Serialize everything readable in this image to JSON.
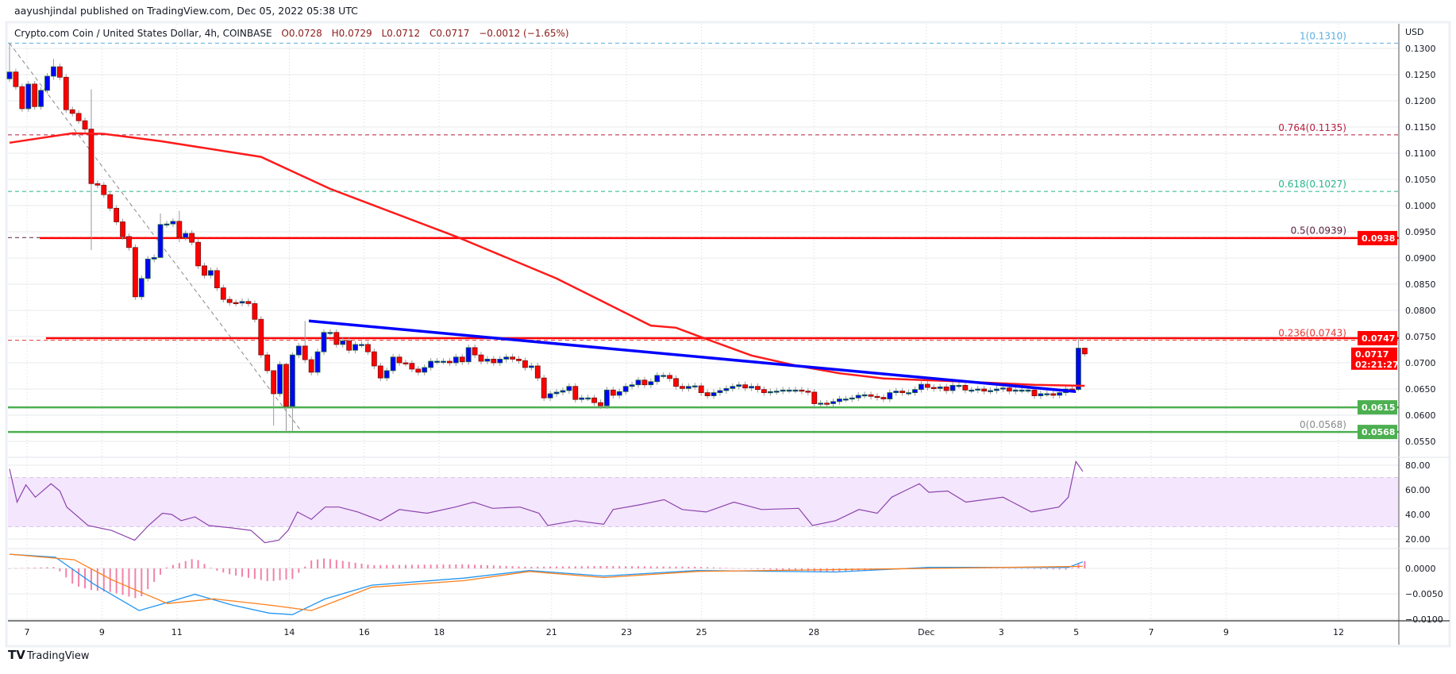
{
  "header": {
    "published": "aayushjindal published on TradingView.com, Dec 05, 2022 05:38 UTC",
    "symbol": "Crypto.com Coin / United States Dollar, 4h, COINBASE",
    "open": "O0.0728",
    "high": "H0.0729",
    "low": "L0.0712",
    "close": "C0.0717",
    "change": "−0.0012 (−1.65%)"
  },
  "footer": {
    "logo_text": "TradingView"
  },
  "colors": {
    "up": "#0000ff",
    "up_border": "#1e6b2e",
    "down": "#ff0000",
    "down_border": "#7a0e0e",
    "ma": "#ff1a1a",
    "trend": "#0000ff",
    "resistance": "#ff0000",
    "support": "#4caf50",
    "rsi": "#8e44ad",
    "macd": "#2196f3",
    "signal": "#ff7f1a",
    "hist": "#f06292"
  },
  "chart_data": {
    "type": "candlestick",
    "title": "Crypto.com Coin / United States Dollar, 4h, COINBASE",
    "currency_label": "USD",
    "ylim": [
      0.0535,
      0.135
    ],
    "y_ticks": [
      "0.1300",
      "0.1250",
      "0.1200",
      "0.1150",
      "0.1100",
      "0.1050",
      "0.1000",
      "0.0950",
      "0.0900",
      "0.0850",
      "0.0800",
      "0.0750",
      "0.0700",
      "0.0650",
      "0.0600",
      "0.0550"
    ],
    "x_ticks": [
      {
        "label": "7",
        "day": 0
      },
      {
        "label": "9",
        "day": 2
      },
      {
        "label": "11",
        "day": 4
      },
      {
        "label": "14",
        "day": 7
      },
      {
        "label": "16",
        "day": 9
      },
      {
        "label": "18",
        "day": 11
      },
      {
        "label": "21",
        "day": 14
      },
      {
        "label": "23",
        "day": 16
      },
      {
        "label": "25",
        "day": 18
      },
      {
        "label": "28",
        "day": 21
      },
      {
        "label": "Dec",
        "day": 24
      },
      {
        "label": "3",
        "day": 26
      },
      {
        "label": "5",
        "day": 28
      },
      {
        "label": "7",
        "day": 30
      },
      {
        "label": "9",
        "day": 32
      },
      {
        "label": "12",
        "day": 35
      }
    ],
    "first_open": 0.1242,
    "closes": [
      0.1255,
      0.1227,
      0.1185,
      0.1232,
      0.1189,
      0.122,
      0.1247,
      0.1265,
      0.1245,
      0.1183,
      0.1176,
      0.1162,
      0.1146,
      0.1042,
      0.1039,
      0.1021,
      0.0995,
      0.0969,
      0.0941,
      0.092,
      0.0826,
      0.0861,
      0.0898,
      0.0901,
      0.0964,
      0.0965,
      0.097,
      0.0939,
      0.0947,
      0.093,
      0.0885,
      0.0867,
      0.0876,
      0.0843,
      0.0821,
      0.0815,
      0.0814,
      0.0817,
      0.0813,
      0.0783,
      0.0715,
      0.0685,
      0.0641,
      0.0697,
      0.0617,
      0.0715,
      0.0732,
      0.0706,
      0.0682,
      0.0721,
      0.0758,
      0.0758,
      0.0735,
      0.0742,
      0.0724,
      0.0735,
      0.0735,
      0.0721,
      0.0694,
      0.0671,
      0.0685,
      0.0711,
      0.07,
      0.0699,
      0.0688,
      0.0682,
      0.0691,
      0.0703,
      0.0703,
      0.0703,
      0.07,
      0.0711,
      0.0702,
      0.0729,
      0.0715,
      0.0703,
      0.0707,
      0.07,
      0.0707,
      0.0711,
      0.0707,
      0.0704,
      0.0691,
      0.0694,
      0.0671,
      0.0633,
      0.0641,
      0.0644,
      0.0647,
      0.0655,
      0.063,
      0.0633,
      0.0633,
      0.0624,
      0.0618,
      0.0648,
      0.0638,
      0.0645,
      0.0655,
      0.0658,
      0.0667,
      0.0658,
      0.0664,
      0.0676,
      0.0676,
      0.067,
      0.0655,
      0.0651,
      0.0655,
      0.0656,
      0.0643,
      0.0637,
      0.0643,
      0.0647,
      0.0651,
      0.0655,
      0.0658,
      0.0652,
      0.0655,
      0.0649,
      0.0643,
      0.0645,
      0.0646,
      0.0648,
      0.0648,
      0.0648,
      0.0646,
      0.0644,
      0.0622,
      0.0623,
      0.0622,
      0.0626,
      0.0631,
      0.0631,
      0.0633,
      0.0638,
      0.0639,
      0.0636,
      0.0634,
      0.0631,
      0.0643,
      0.0646,
      0.0643,
      0.0643,
      0.0649,
      0.0659,
      0.0653,
      0.0651,
      0.0654,
      0.0647,
      0.0657,
      0.0657,
      0.0648,
      0.0648,
      0.065,
      0.0646,
      0.0647,
      0.065,
      0.0652,
      0.0646,
      0.0648,
      0.0648,
      0.0648,
      0.0637,
      0.0641,
      0.0641,
      0.0638,
      0.0643,
      0.065,
      0.0649,
      0.0728,
      0.0717
    ],
    "wick_extremes": [
      {
        "i": 0,
        "h": 0.131,
        "l": 0.1236
      },
      {
        "i": 7,
        "h": 0.128,
        "l": 0.124
      },
      {
        "i": 13,
        "h": 0.1222,
        "l": 0.0915
      },
      {
        "i": 24,
        "h": 0.0985,
        "l": 0.094
      },
      {
        "i": 27,
        "h": 0.099,
        "l": 0.093
      },
      {
        "i": 42,
        "h": 0.068,
        "l": 0.058
      },
      {
        "i": 44,
        "h": 0.07,
        "l": 0.0568
      },
      {
        "i": 45,
        "h": 0.072,
        "l": 0.057
      },
      {
        "i": 47,
        "h": 0.078,
        "l": 0.07
      },
      {
        "i": 170,
        "h": 0.0747,
        "l": 0.0646
      },
      {
        "i": 171,
        "h": 0.0729,
        "l": 0.0712
      }
    ],
    "ma_series": [
      [
        0,
        0.112
      ],
      [
        10,
        0.1138
      ],
      [
        15,
        0.1137
      ],
      [
        24,
        0.1123
      ],
      [
        40,
        0.1093
      ],
      [
        51,
        0.1032
      ],
      [
        71,
        0.0941
      ],
      [
        87,
        0.0861
      ],
      [
        102,
        0.0771
      ],
      [
        106,
        0.0767
      ],
      [
        110,
        0.0749
      ],
      [
        118,
        0.0714
      ],
      [
        125,
        0.0695
      ],
      [
        132,
        0.068
      ],
      [
        139,
        0.067
      ],
      [
        150,
        0.0665
      ],
      [
        163,
        0.0658
      ],
      [
        171,
        0.0656
      ]
    ],
    "trendline": [
      [
        47.6,
        0.078
      ],
      [
        169.6,
        0.0645
      ]
    ],
    "fib_diagonal": [
      [
        0,
        0.131
      ],
      [
        46.5,
        0.0568
      ]
    ],
    "horizontal_lines": [
      {
        "value": 0.0938,
        "kind": "resistance",
        "label": "0.0938"
      },
      {
        "value": 0.0747,
        "kind": "resistance",
        "label": "0.0747"
      },
      {
        "value": 0.0615,
        "kind": "support",
        "label": "0.0615"
      },
      {
        "value": 0.0568,
        "kind": "support",
        "label": "0.0568"
      }
    ],
    "last_price": {
      "value": 0.0717,
      "label": "0.0717",
      "countdown": "02:21:27"
    },
    "fib_levels": [
      {
        "value": 0.131,
        "label": "1(0.1310)",
        "color": "#5aaee0"
      },
      {
        "value": 0.1135,
        "label": "0.764(0.1135)",
        "color": "#b71c3c"
      },
      {
        "value": 0.1027,
        "label": "0.618(0.1027)",
        "color": "#26b58a"
      },
      {
        "value": 0.0939,
        "label": "0.5(0.0939)",
        "color": "#5b1e3c"
      },
      {
        "value": 0.0743,
        "label": "0.236(0.0743)",
        "color": "#e53935"
      },
      {
        "value": 0.0568,
        "label": "0(0.0568)",
        "color": "#888888"
      }
    ],
    "rsi": {
      "ticks": [
        "80.00",
        "60.00",
        "40.00",
        "20.00"
      ],
      "band": [
        30,
        70
      ],
      "series": [
        [
          0,
          77
        ],
        [
          1.2,
          50
        ],
        [
          2.6,
          64
        ],
        [
          4.1,
          54
        ],
        [
          6.6,
          65
        ],
        [
          8,
          59
        ],
        [
          9.1,
          46
        ],
        [
          12.5,
          31
        ],
        [
          16.2,
          27
        ],
        [
          19.9,
          19
        ],
        [
          22.1,
          31
        ],
        [
          24.3,
          41
        ],
        [
          25.8,
          40
        ],
        [
          27.3,
          35
        ],
        [
          29.5,
          38
        ],
        [
          31.7,
          31
        ],
        [
          35.4,
          29
        ],
        [
          38.4,
          27
        ],
        [
          40.6,
          17
        ],
        [
          42.8,
          19
        ],
        [
          44.3,
          27
        ],
        [
          45.8,
          42
        ],
        [
          48,
          36
        ],
        [
          50.2,
          46
        ],
        [
          52.4,
          46
        ],
        [
          55.4,
          42
        ],
        [
          59,
          35
        ],
        [
          62,
          44
        ],
        [
          66.4,
          41
        ],
        [
          70.9,
          46
        ],
        [
          73.8,
          50
        ],
        [
          76.8,
          45
        ],
        [
          81.2,
          46
        ],
        [
          84.2,
          41
        ],
        [
          85.6,
          31
        ],
        [
          90,
          35
        ],
        [
          94.5,
          32
        ],
        [
          96,
          44
        ],
        [
          100.4,
          48
        ],
        [
          104.1,
          52
        ],
        [
          107,
          44
        ],
        [
          110.8,
          42
        ],
        [
          115.2,
          50
        ],
        [
          119.6,
          44
        ],
        [
          125.5,
          45
        ],
        [
          127.7,
          31
        ],
        [
          131.4,
          35
        ],
        [
          135.1,
          44
        ],
        [
          138,
          41
        ],
        [
          140.3,
          54
        ],
        [
          144.7,
          65
        ],
        [
          146.2,
          58
        ],
        [
          149.2,
          59
        ],
        [
          152.1,
          50
        ],
        [
          158,
          54
        ],
        [
          162.5,
          42
        ],
        [
          166.9,
          46
        ],
        [
          168.4,
          54
        ],
        [
          169.6,
          83
        ],
        [
          170.7,
          75
        ]
      ]
    },
    "macd": {
      "ticks": [
        "0.0000",
        "−0.0050",
        "−0.0100"
      ],
      "macd_series": [
        [
          0,
          0.0028
        ],
        [
          7.3,
          0.0022
        ],
        [
          13.3,
          -0.003
        ],
        [
          20.6,
          -0.0083
        ],
        [
          23.7,
          -0.0072
        ],
        [
          29.5,
          -0.0051
        ],
        [
          35.4,
          -0.0072
        ],
        [
          41.3,
          -0.0088
        ],
        [
          45,
          -0.0091
        ],
        [
          50.2,
          -0.006
        ],
        [
          57.6,
          -0.0033
        ],
        [
          72.3,
          -0.0019
        ],
        [
          82.7,
          -0.0004
        ],
        [
          94.5,
          -0.0015
        ],
        [
          109.3,
          -0.0004
        ],
        [
          131.4,
          -0.0007
        ],
        [
          146.2,
          0.0002
        ],
        [
          168.4,
          0.0002
        ],
        [
          170.7,
          0.0013
        ]
      ],
      "signal_series": [
        [
          0,
          0.0028
        ],
        [
          10.3,
          0.0017
        ],
        [
          16.2,
          -0.0022
        ],
        [
          25.1,
          -0.0069
        ],
        [
          32.5,
          -0.006
        ],
        [
          41.3,
          -0.0072
        ],
        [
          48,
          -0.0083
        ],
        [
          57.6,
          -0.0037
        ],
        [
          72.3,
          -0.0024
        ],
        [
          82.7,
          -0.0006
        ],
        [
          94.5,
          -0.0018
        ],
        [
          109.3,
          -0.0006
        ],
        [
          146.2,
          0.0
        ],
        [
          170.7,
          0.0004
        ]
      ]
    }
  }
}
